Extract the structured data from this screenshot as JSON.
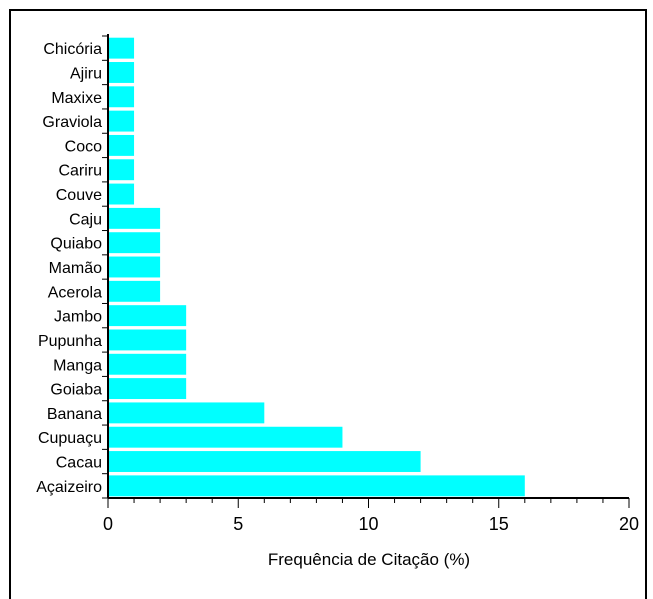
{
  "chart_data": {
    "type": "bar",
    "orientation": "horizontal",
    "categories": [
      "Chicória",
      "Ajiru",
      "Maxixe",
      "Graviola",
      "Coco",
      "Cariru",
      "Couve",
      "Caju",
      "Quiabo",
      "Mamão",
      "Acerola",
      "Jambo",
      "Pupunha",
      "Manga",
      "Goiaba",
      "Banana",
      "Cupuaçu",
      "Cacau",
      "Açaizeiro"
    ],
    "values": [
      1,
      1,
      1,
      1,
      1,
      1,
      1,
      2,
      2,
      2,
      2,
      3,
      3,
      3,
      3,
      6,
      9,
      12,
      16
    ],
    "xlabel": "Frequência de Citação (%)",
    "ylabel": "",
    "xlim": [
      0,
      20
    ],
    "xticks": [
      0,
      5,
      10,
      15,
      20
    ],
    "bar_color": "#00ffff",
    "grid": false,
    "legend": "none"
  }
}
